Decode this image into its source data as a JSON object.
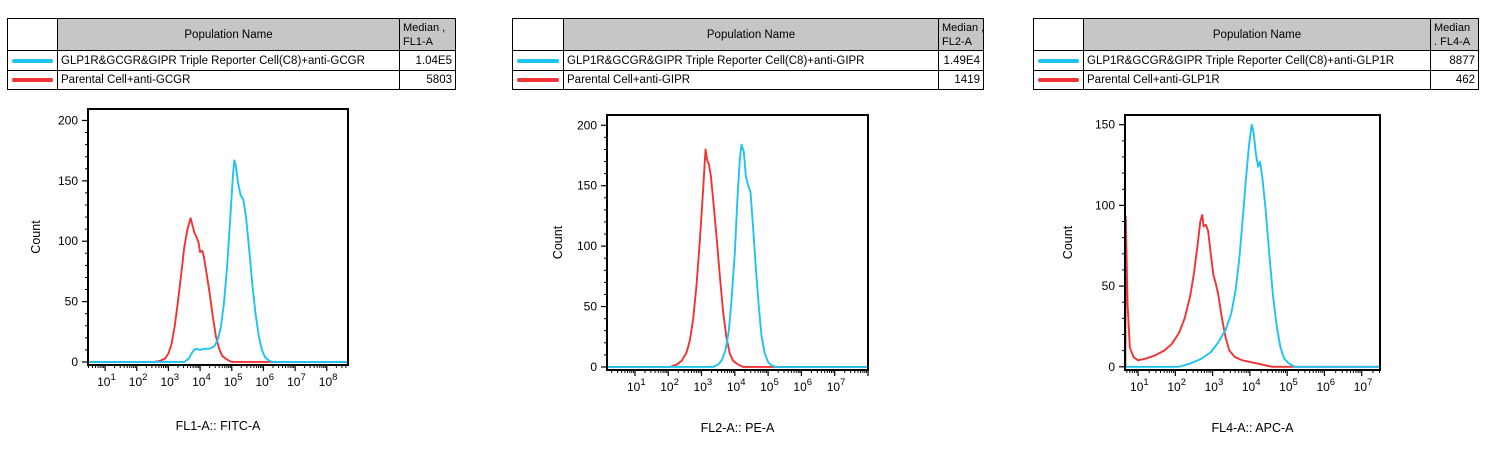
{
  "page": {
    "background": "#ffffff",
    "border_color": "#000000",
    "header_fill": "#c6c6c6"
  },
  "panels": [
    {
      "table": {
        "header": {
          "population": "Population Name",
          "median_line1": "Median ,",
          "median_line2": "FL1-A"
        },
        "rows": [
          {
            "color": "#1fc3f3",
            "name": "GLP1R&GCGR&GIPR Triple Reporter Cell(C8)+anti-GCGR",
            "median": "1.04E5"
          },
          {
            "color": "#f23333",
            "name": "Parental Cell+anti-GCGR",
            "median": "5803"
          }
        ]
      },
      "chart_data": {
        "type": "line",
        "title": "",
        "xlabel": "FL1-A:: FITC-A",
        "ylabel": "Count",
        "x_scale": "log10",
        "x_tick_base": "10",
        "x_decade_labels": [
          1,
          2,
          3,
          4,
          5,
          6,
          7,
          8
        ],
        "x_range_exp": [
          0.46,
          8.67
        ],
        "y_ticks": [
          0,
          50,
          100,
          150,
          200
        ],
        "y_minor_step": 10,
        "y_range": [
          -2.5,
          209.5
        ],
        "grid": false,
        "legend_position": "table-above",
        "series": [
          {
            "name": "Parental Cell+anti-GCGR",
            "color": "#f23333",
            "points_exp_count": [
              [
                2.55,
                0
              ],
              [
                2.75,
                1
              ],
              [
                2.9,
                3
              ],
              [
                3.0,
                7
              ],
              [
                3.1,
                15
              ],
              [
                3.2,
                30
              ],
              [
                3.3,
                50
              ],
              [
                3.4,
                72
              ],
              [
                3.5,
                95
              ],
              [
                3.6,
                110
              ],
              [
                3.7,
                119
              ],
              [
                3.77,
                112
              ],
              [
                3.82,
                107
              ],
              [
                3.88,
                104
              ],
              [
                3.95,
                99
              ],
              [
                4.0,
                91
              ],
              [
                4.07,
                92
              ],
              [
                4.12,
                87
              ],
              [
                4.2,
                74
              ],
              [
                4.3,
                57
              ],
              [
                4.4,
                38
              ],
              [
                4.5,
                21
              ],
              [
                4.6,
                11
              ],
              [
                4.7,
                5
              ],
              [
                4.85,
                2
              ],
              [
                5.0,
                0
              ]
            ]
          },
          {
            "name": "GLP1R&GCGR&GIPR Triple Reporter Cell(C8)+anti-GCGR",
            "color": "#1fc3f3",
            "points_exp_count": [
              [
                3.5,
                0
              ],
              [
                3.65,
                3
              ],
              [
                3.75,
                8
              ],
              [
                3.85,
                11
              ],
              [
                4.0,
                10
              ],
              [
                4.15,
                11
              ],
              [
                4.3,
                11
              ],
              [
                4.45,
                13
              ],
              [
                4.55,
                18
              ],
              [
                4.65,
                28
              ],
              [
                4.75,
                48
              ],
              [
                4.85,
                78
              ],
              [
                4.95,
                118
              ],
              [
                5.03,
                152
              ],
              [
                5.08,
                167
              ],
              [
                5.13,
                162
              ],
              [
                5.2,
                148
              ],
              [
                5.28,
                138
              ],
              [
                5.36,
                135
              ],
              [
                5.45,
                120
              ],
              [
                5.55,
                93
              ],
              [
                5.65,
                64
              ],
              [
                5.75,
                40
              ],
              [
                5.85,
                22
              ],
              [
                5.95,
                10
              ],
              [
                6.05,
                4
              ],
              [
                6.18,
                1
              ],
              [
                6.3,
                0
              ]
            ]
          }
        ]
      }
    },
    {
      "table": {
        "header": {
          "population": "Population Name",
          "median_line1": "Median ,",
          "median_line2": "FL2-A"
        },
        "rows": [
          {
            "color": "#1fc3f3",
            "name": "GLP1R&GCGR&GIPR Triple Reporter Cell(C8)+anti-GIPR",
            "median": "1.49E4"
          },
          {
            "color": "#f23333",
            "name": "Parental Cell+anti-GIPR",
            "median": "1419"
          }
        ]
      },
      "chart_data": {
        "type": "line",
        "title": "",
        "xlabel": "FL2-A:: PE-A",
        "ylabel": "Count",
        "x_scale": "log10",
        "x_tick_base": "10",
        "x_decade_labels": [
          1,
          2,
          3,
          4,
          5,
          6,
          7
        ],
        "x_range_exp": [
          0.16,
          8.0
        ],
        "y_ticks": [
          0,
          50,
          100,
          150,
          200
        ],
        "y_minor_step": 10,
        "y_range": [
          -2.5,
          208.5
        ],
        "grid": false,
        "legend_position": "table-above",
        "series": [
          {
            "name": "Parental Cell+anti-GIPR",
            "color": "#f23333",
            "points_exp_count": [
              [
                2.05,
                0
              ],
              [
                2.25,
                2
              ],
              [
                2.4,
                5
              ],
              [
                2.55,
                12
              ],
              [
                2.65,
                22
              ],
              [
                2.75,
                40
              ],
              [
                2.85,
                68
              ],
              [
                2.95,
                105
              ],
              [
                3.05,
                148
              ],
              [
                3.12,
                180
              ],
              [
                3.17,
                171
              ],
              [
                3.22,
                168
              ],
              [
                3.28,
                158
              ],
              [
                3.35,
                138
              ],
              [
                3.45,
                108
              ],
              [
                3.55,
                75
              ],
              [
                3.65,
                45
              ],
              [
                3.75,
                24
              ],
              [
                3.85,
                11
              ],
              [
                3.95,
                5
              ],
              [
                4.1,
                2
              ],
              [
                4.25,
                0
              ]
            ]
          },
          {
            "name": "GLP1R&GCGR&GIPR Triple Reporter Cell(C8)+anti-GIPR",
            "color": "#1fc3f3",
            "points_exp_count": [
              [
                3.35,
                0
              ],
              [
                3.5,
                2
              ],
              [
                3.62,
                6
              ],
              [
                3.72,
                14
              ],
              [
                3.82,
                30
              ],
              [
                3.9,
                55
              ],
              [
                4.0,
                95
              ],
              [
                4.08,
                140
              ],
              [
                4.15,
                172
              ],
              [
                4.2,
                184
              ],
              [
                4.27,
                178
              ],
              [
                4.33,
                158
              ],
              [
                4.4,
                150
              ],
              [
                4.47,
                145
              ],
              [
                4.55,
                115
              ],
              [
                4.63,
                82
              ],
              [
                4.72,
                50
              ],
              [
                4.8,
                26
              ],
              [
                4.9,
                11
              ],
              [
                5.0,
                4
              ],
              [
                5.12,
                1
              ],
              [
                5.25,
                0
              ]
            ]
          }
        ]
      }
    },
    {
      "table": {
        "header": {
          "population": "Population Name",
          "median_line1": "Median",
          "median_line2": ". FL4-A"
        },
        "rows": [
          {
            "color": "#1fc3f3",
            "name": "GLP1R&GCGR&GIPR Triple Reporter Cell(C8)+anti-GLP1R",
            "median": "8877"
          },
          {
            "color": "#f23333",
            "name": "Parental Cell+anti-GLP1R",
            "median": "462"
          }
        ]
      },
      "chart_data": {
        "type": "line",
        "title": "",
        "xlabel": "FL4-A:: APC-A",
        "ylabel": "Count",
        "x_scale": "log10",
        "x_tick_base": "10",
        "x_decade_labels": [
          1,
          2,
          3,
          4,
          5,
          6,
          7
        ],
        "x_range_exp": [
          0.65,
          7.49
        ],
        "y_ticks": [
          0,
          50,
          100,
          150
        ],
        "y_minor_step": 10,
        "y_range": [
          -2,
          156
        ],
        "grid": false,
        "legend_position": "table-above",
        "series": [
          {
            "name": "Parental Cell+anti-GLP1R",
            "color": "#f23333",
            "points_exp_count": [
              [
                0.66,
                0
              ],
              [
                0.67,
                93
              ],
              [
                0.72,
                38
              ],
              [
                0.78,
                12
              ],
              [
                0.88,
                6
              ],
              [
                1.0,
                4
              ],
              [
                1.2,
                5
              ],
              [
                1.45,
                7
              ],
              [
                1.7,
                10
              ],
              [
                1.9,
                14
              ],
              [
                2.1,
                21
              ],
              [
                2.25,
                30
              ],
              [
                2.4,
                44
              ],
              [
                2.5,
                58
              ],
              [
                2.6,
                76
              ],
              [
                2.67,
                90
              ],
              [
                2.72,
                94
              ],
              [
                2.76,
                87
              ],
              [
                2.82,
                88
              ],
              [
                2.88,
                84
              ],
              [
                2.95,
                70
              ],
              [
                3.02,
                57
              ],
              [
                3.08,
                52
              ],
              [
                3.15,
                45
              ],
              [
                3.25,
                30
              ],
              [
                3.35,
                18
              ],
              [
                3.45,
                10
              ],
              [
                3.6,
                6
              ],
              [
                3.8,
                4
              ],
              [
                4.0,
                3
              ],
              [
                4.2,
                2
              ],
              [
                4.4,
                1
              ],
              [
                4.6,
                0
              ]
            ]
          },
          {
            "name": "GLP1R&GCGR&GIPR Triple Reporter Cell(C8)+anti-GLP1R",
            "color": "#1fc3f3",
            "points_exp_count": [
              [
                2.1,
                0
              ],
              [
                2.4,
                2
              ],
              [
                2.7,
                5
              ],
              [
                2.95,
                9
              ],
              [
                3.15,
                15
              ],
              [
                3.35,
                23
              ],
              [
                3.5,
                33
              ],
              [
                3.62,
                48
              ],
              [
                3.72,
                68
              ],
              [
                3.82,
                95
              ],
              [
                3.9,
                118
              ],
              [
                3.98,
                138
              ],
              [
                4.05,
                150
              ],
              [
                4.1,
                145
              ],
              [
                4.16,
                132
              ],
              [
                4.22,
                124
              ],
              [
                4.27,
                127
              ],
              [
                4.33,
                118
              ],
              [
                4.42,
                98
              ],
              [
                4.52,
                70
              ],
              [
                4.62,
                44
              ],
              [
                4.72,
                25
              ],
              [
                4.82,
                12
              ],
              [
                4.92,
                5
              ],
              [
                5.05,
                2
              ],
              [
                5.2,
                0
              ]
            ]
          }
        ]
      }
    }
  ]
}
